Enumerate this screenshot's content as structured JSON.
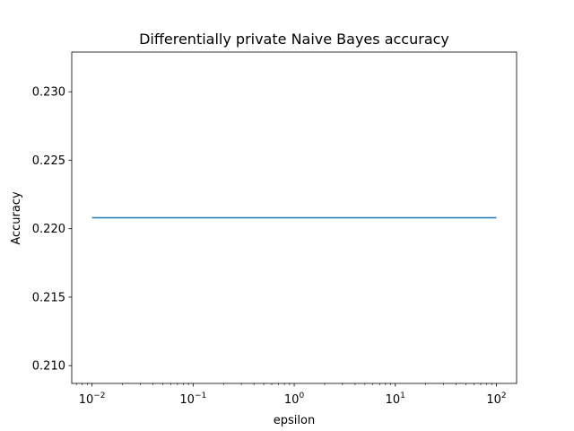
{
  "chart_data": {
    "type": "line",
    "title": "Differentially private Naive Bayes accuracy",
    "xlabel": "epsilon",
    "ylabel": "Accuracy",
    "x_scale": "log",
    "xlim": [
      0.0063,
      158.5
    ],
    "ylim": [
      0.2087,
      0.2329
    ],
    "grid": false,
    "legend": "none",
    "x_ticks": [
      {
        "value": 0.01,
        "base": "10",
        "exp": "−2"
      },
      {
        "value": 0.1,
        "base": "10",
        "exp": "−1"
      },
      {
        "value": 1,
        "base": "10",
        "exp": "0"
      },
      {
        "value": 10,
        "base": "10",
        "exp": "1"
      },
      {
        "value": 100,
        "base": "10",
        "exp": "2"
      }
    ],
    "y_ticks": [
      {
        "value": 0.21,
        "label": "0.210"
      },
      {
        "value": 0.215,
        "label": "0.215"
      },
      {
        "value": 0.22,
        "label": "0.220"
      },
      {
        "value": 0.225,
        "label": "0.225"
      },
      {
        "value": 0.23,
        "label": "0.230"
      }
    ],
    "series": [
      {
        "color": "#1f77b4",
        "x": [
          0.01,
          100
        ],
        "y": [
          0.2208,
          0.2208
        ]
      }
    ]
  }
}
